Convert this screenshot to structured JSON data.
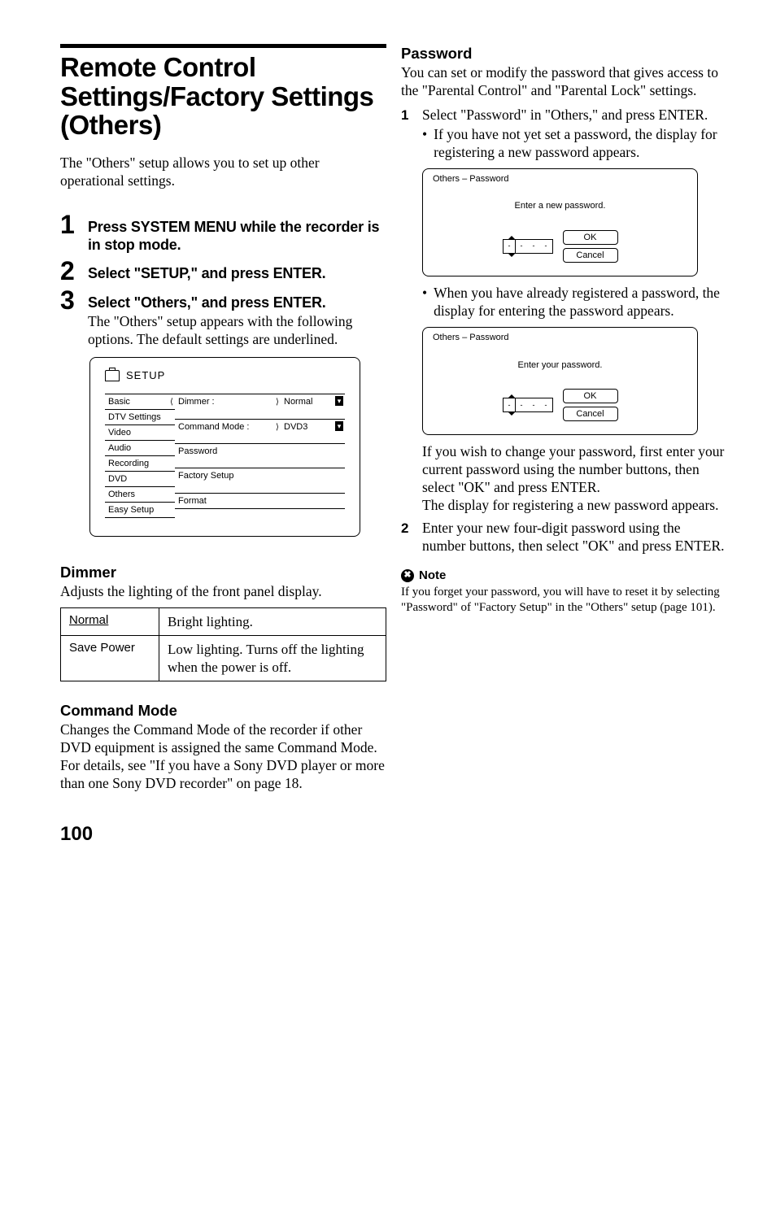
{
  "left": {
    "title": "Remote Control Settings/Factory Settings (Others)",
    "intro": "The \"Others\" setup allows you to set up other operational settings.",
    "steps": [
      {
        "num": "1",
        "head": "Press SYSTEM MENU while the recorder is in stop mode."
      },
      {
        "num": "2",
        "head": "Select \"SETUP,\" and press ENTER."
      },
      {
        "num": "3",
        "head": "Select \"Others,\" and press ENTER.",
        "body": "The \"Others\" setup appears with the following options. The default settings are underlined."
      }
    ],
    "setup": {
      "label": "SETUP",
      "tabs": [
        "Basic",
        "DTV Settings",
        "Video",
        "Audio",
        "Recording",
        "DVD",
        "Others",
        "Easy Setup"
      ],
      "rows": [
        {
          "l": "Dimmer :",
          "r": "Normal",
          "arrow": true,
          "caret": "open"
        },
        {
          "l": "Command Mode :",
          "r": "DVD3",
          "arrow": true,
          "caret": "close"
        },
        {
          "l": "Password",
          "r": ""
        },
        {
          "l": "Factory Setup",
          "r": ""
        },
        {
          "l": "Format",
          "r": ""
        }
      ]
    },
    "dimmer": {
      "heading": "Dimmer",
      "para": "Adjusts the lighting of the front panel display.",
      "rows": [
        {
          "k": "Normal",
          "v": "Bright lighting.",
          "ul": true
        },
        {
          "k": "Save Power",
          "v": "Low lighting. Turns off the lighting when the power is off."
        }
      ]
    },
    "command": {
      "heading": "Command Mode",
      "para": "Changes the Command Mode of the recorder if other DVD equipment is assigned the same Command Mode. For details, see \"If you have a Sony DVD player or more than one Sony DVD recorder\" on page 18."
    }
  },
  "right": {
    "password": {
      "heading": "Password",
      "para": "You can set or modify the password that gives access to the \"Parental Control\" and \"Parental Lock\" settings.",
      "step1": "Select \"Password\" in \"Others,\" and press ENTER.",
      "bullet1": "If you have not yet set a password, the display for registering a new password appears.",
      "dlg1": {
        "title": "Others – Password",
        "msg": "Enter a new password.",
        "ok": "OK",
        "cancel": "Cancel"
      },
      "bullet2": "When you have already registered a password, the display for entering the password appears.",
      "dlg2": {
        "title": "Others – Password",
        "msg": "Enter your password.",
        "ok": "OK",
        "cancel": "Cancel"
      },
      "after": "If you wish to change your password, first enter your current password using the number buttons, then select \"OK\" and press ENTER.\nThe display for registering a new password appears.",
      "step2": "Enter your new four-digit password using the number buttons, then select \"OK\" and press ENTER."
    },
    "note": {
      "label": "Note",
      "body": "If you forget your password, you will have to reset it by selecting \"Password\" of \"Factory Setup\" in the \"Others\" setup (page 101)."
    }
  },
  "pagenum": "100"
}
